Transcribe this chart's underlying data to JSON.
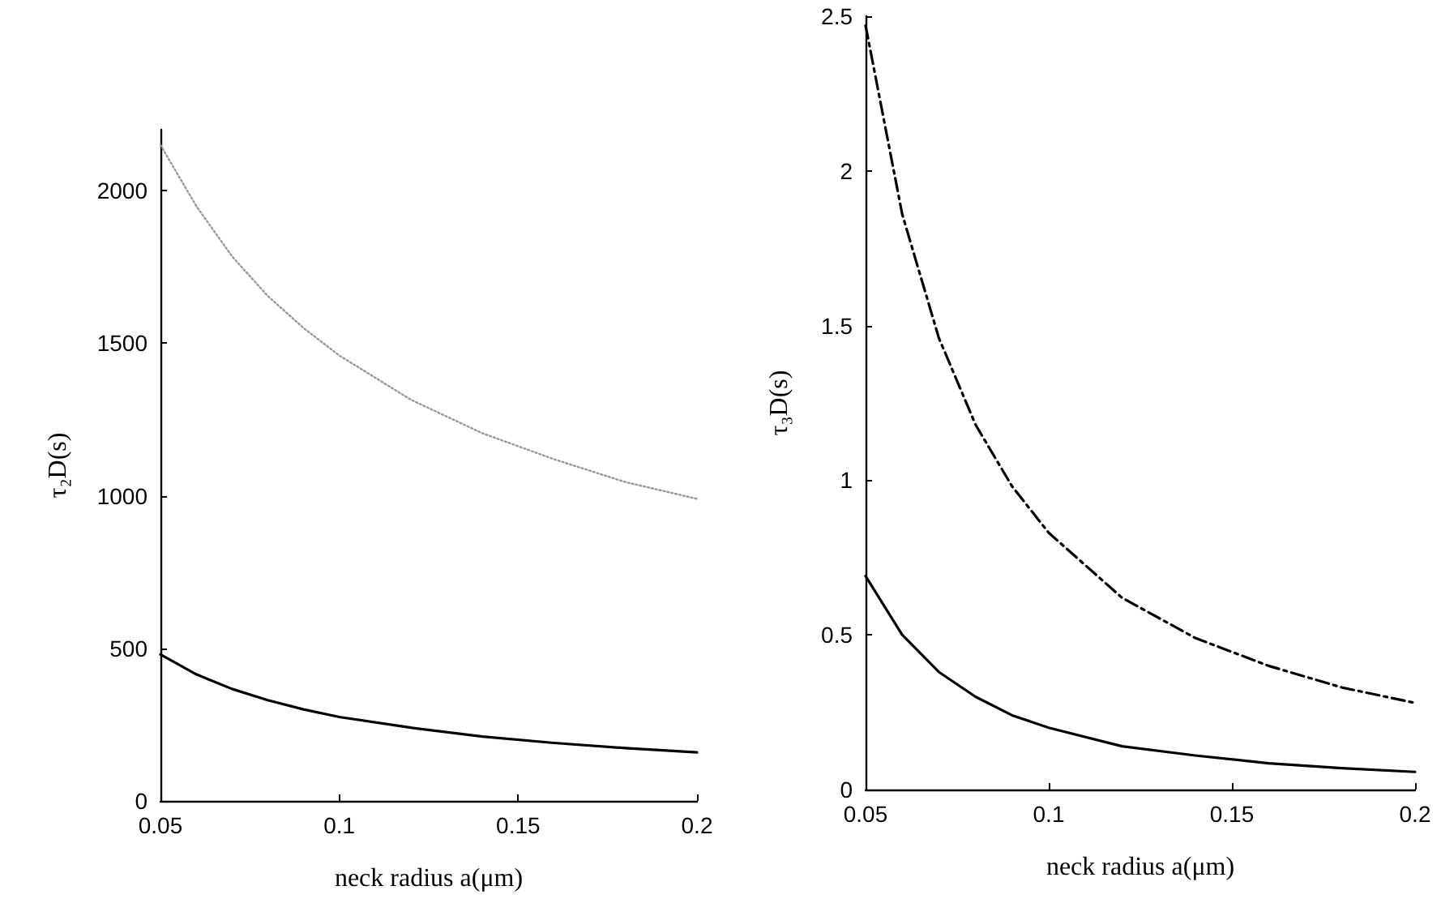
{
  "chart_data": [
    {
      "type": "line",
      "xlabel": "neck radius a(μm)",
      "ylabel": "τ₂D(s)",
      "xlim": [
        0.05,
        0.2
      ],
      "xticks": [
        0.05,
        0.1,
        0.15,
        0.2
      ],
      "ylim": [
        0,
        2200
      ],
      "yticks": [
        0,
        500,
        1000,
        1500,
        2000
      ],
      "grid": false,
      "marker": "none",
      "series": [
        {
          "color": "#999999",
          "line_style": "dotted",
          "x": [
            0.05,
            0.06,
            0.07,
            0.08,
            0.09,
            0.1,
            0.12,
            0.14,
            0.16,
            0.18,
            0.2
          ],
          "values": [
            2150,
            1950,
            1785,
            1655,
            1550,
            1460,
            1315,
            1205,
            1120,
            1045,
            990
          ]
        },
        {
          "color": "#000000",
          "line_style": "solid",
          "x": [
            0.05,
            0.06,
            0.07,
            0.08,
            0.09,
            0.1,
            0.12,
            0.14,
            0.16,
            0.18,
            0.2
          ],
          "values": [
            480,
            415,
            367,
            330,
            300,
            275,
            240,
            211,
            190,
            173,
            159
          ]
        }
      ]
    },
    {
      "type": "line",
      "xlabel": "neck radius a(μm)",
      "ylabel": "τ₃D(s)",
      "xlim": [
        0.05,
        0.2
      ],
      "xticks": [
        0.05,
        0.1,
        0.15,
        0.2
      ],
      "ylim": [
        0,
        2.5
      ],
      "yticks": [
        0,
        0.5,
        1,
        1.5,
        2,
        2.5
      ],
      "grid": false,
      "marker": "none",
      "series": [
        {
          "color": "#000000",
          "line_style": "dashed",
          "x": [
            0.05,
            0.06,
            0.07,
            0.08,
            0.09,
            0.1,
            0.12,
            0.14,
            0.16,
            0.18,
            0.2
          ],
          "values": [
            2.47,
            1.86,
            1.46,
            1.18,
            0.98,
            0.83,
            0.62,
            0.49,
            0.4,
            0.33,
            0.28
          ]
        },
        {
          "color": "#000000",
          "line_style": "solid",
          "x": [
            0.05,
            0.06,
            0.07,
            0.08,
            0.09,
            0.1,
            0.12,
            0.14,
            0.16,
            0.18,
            0.2
          ],
          "values": [
            0.69,
            0.5,
            0.38,
            0.3,
            0.24,
            0.2,
            0.14,
            0.11,
            0.085,
            0.069,
            0.057
          ]
        }
      ]
    }
  ]
}
